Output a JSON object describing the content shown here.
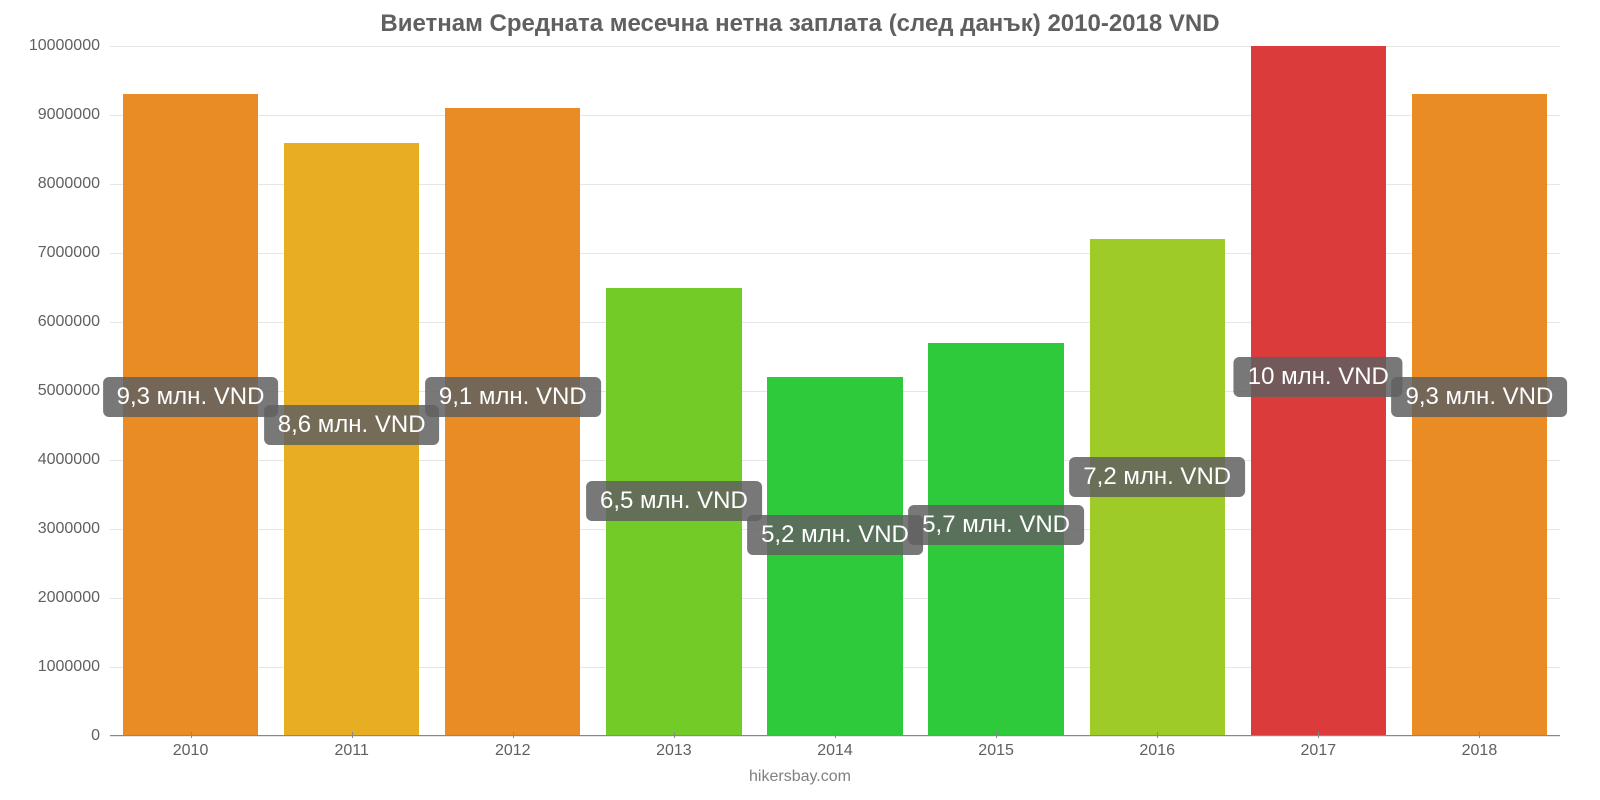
{
  "chart": {
    "type": "bar",
    "title": "Виетнам Средната месечна нетна заплата (след данък) 2010-2018 VND",
    "title_fontsize": 24,
    "title_color": "#606060",
    "background_color": "#ffffff",
    "grid_color": "#e6e6e6",
    "axis_color": "#888888",
    "label_color": "#606060",
    "tick_fontsize": 16,
    "badge_bg": "rgba(96,96,96,0.85)",
    "badge_text_color": "#ffffff",
    "badge_fontsize": 24,
    "attribution": "hikersbay.com",
    "attribution_color": "#808080",
    "ylim": [
      0,
      10000000
    ],
    "ytick_step": 1000000,
    "yticks": [
      {
        "v": 0,
        "label": "0"
      },
      {
        "v": 1000000,
        "label": "1000000"
      },
      {
        "v": 2000000,
        "label": "2000000"
      },
      {
        "v": 3000000,
        "label": "3000000"
      },
      {
        "v": 4000000,
        "label": "4000000"
      },
      {
        "v": 5000000,
        "label": "5000000"
      },
      {
        "v": 6000000,
        "label": "6000000"
      },
      {
        "v": 7000000,
        "label": "7000000"
      },
      {
        "v": 8000000,
        "label": "8000000"
      },
      {
        "v": 9000000,
        "label": "9000000"
      },
      {
        "v": 10000000,
        "label": "10000000"
      }
    ],
    "bar_width": 0.84,
    "categories": [
      "2010",
      "2011",
      "2012",
      "2013",
      "2014",
      "2015",
      "2016",
      "2017",
      "2018"
    ],
    "values": [
      9300000,
      8600000,
      9100000,
      6500000,
      5200000,
      5700000,
      7200000,
      10000000,
      9300000
    ],
    "value_labels": [
      "9,3 млн. VND",
      "8,6 млн. VND",
      "9,1 млн. VND",
      "6,5 млн. VND",
      "5,2 млн. VND",
      "5,7 млн. VND",
      "7,2 млн. VND",
      "10 млн. VND",
      "9,3 млн. VND"
    ],
    "bar_colors": [
      "#e98c23",
      "#e7ae23",
      "#e98c23",
      "#72cb27",
      "#2fc93c",
      "#2fc93c",
      "#9ecb27",
      "#db3b3b",
      "#e98c23"
    ],
    "label_y_value": [
      5200000,
      4800000,
      5200000,
      3700000,
      3200000,
      3350000,
      4050000,
      5500000,
      5200000
    ]
  }
}
